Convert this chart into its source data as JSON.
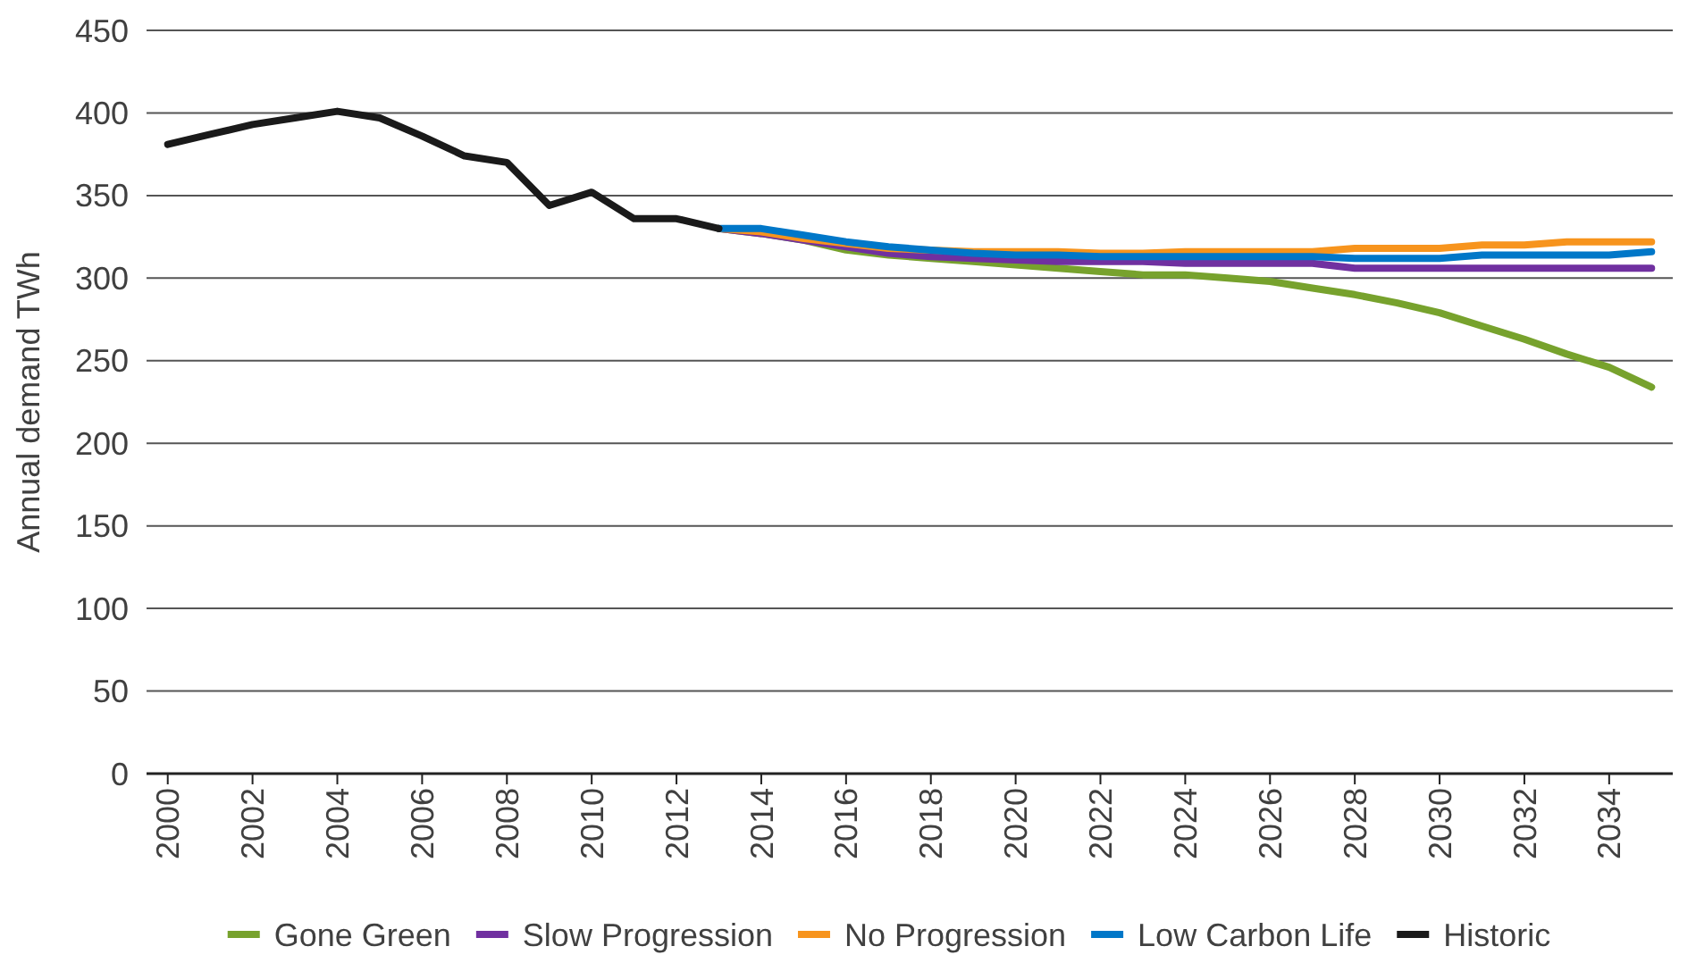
{
  "chart_data": {
    "type": "line",
    "ylabel": "Annual demand TWh",
    "xlim": [
      1999.5,
      2035.5
    ],
    "xticks": [
      2000,
      2002,
      2004,
      2006,
      2008,
      2010,
      2012,
      2014,
      2016,
      2018,
      2020,
      2022,
      2024,
      2026,
      2028,
      2030,
      2032,
      2034
    ],
    "ylim": [
      0,
      450
    ],
    "yticks": [
      0,
      50,
      100,
      150,
      200,
      250,
      300,
      350,
      400,
      450
    ],
    "grid": "y",
    "legend": "bottom",
    "line_style": "solid",
    "series": [
      {
        "name": "Gone Green",
        "color": "#77a22d",
        "x": [
          2013,
          2014,
          2015,
          2016,
          2017,
          2018,
          2019,
          2020,
          2021,
          2022,
          2023,
          2024,
          2025,
          2026,
          2027,
          2028,
          2029,
          2030,
          2031,
          2032,
          2033,
          2034,
          2035
        ],
        "values": [
          330,
          327,
          323,
          317,
          314,
          312,
          310,
          308,
          306,
          304,
          302,
          302,
          300,
          298,
          294,
          290,
          285,
          279,
          271,
          263,
          254,
          246,
          234
        ]
      },
      {
        "name": "Slow Progression",
        "color": "#7030a0",
        "x": [
          2013,
          2014,
          2015,
          2016,
          2017,
          2018,
          2019,
          2020,
          2021,
          2022,
          2023,
          2024,
          2025,
          2026,
          2027,
          2028,
          2029,
          2030,
          2031,
          2032,
          2033,
          2034,
          2035
        ],
        "values": [
          330,
          327,
          323,
          319,
          315,
          313,
          312,
          311,
          310,
          310,
          310,
          309,
          309,
          309,
          309,
          306,
          306,
          306,
          306,
          306,
          306,
          306,
          306
        ]
      },
      {
        "name": "No Progression",
        "color": "#f7941d",
        "x": [
          2013,
          2014,
          2015,
          2016,
          2017,
          2018,
          2019,
          2020,
          2021,
          2022,
          2023,
          2024,
          2025,
          2026,
          2027,
          2028,
          2029,
          2030,
          2031,
          2032,
          2033,
          2034,
          2035
        ],
        "values": [
          330,
          328,
          324,
          321,
          318,
          317,
          316,
          316,
          316,
          315,
          315,
          316,
          316,
          316,
          316,
          318,
          318,
          318,
          320,
          320,
          322,
          322,
          322
        ]
      },
      {
        "name": "Low Carbon Life",
        "color": "#0077c8",
        "x": [
          2013,
          2014,
          2015,
          2016,
          2017,
          2018,
          2019,
          2020,
          2021,
          2022,
          2023,
          2024,
          2025,
          2026,
          2027,
          2028,
          2029,
          2030,
          2031,
          2032,
          2033,
          2034,
          2035
        ],
        "values": [
          330,
          330,
          326,
          322,
          319,
          317,
          315,
          314,
          314,
          313,
          313,
          313,
          313,
          313,
          313,
          312,
          312,
          312,
          314,
          314,
          314,
          314,
          316
        ]
      },
      {
        "name": "Historic",
        "color": "#1a1a1a",
        "x": [
          2000,
          2001,
          2002,
          2003,
          2004,
          2005,
          2006,
          2007,
          2008,
          2009,
          2010,
          2011,
          2012,
          2013
        ],
        "values": [
          381,
          387,
          393,
          397,
          401,
          397,
          386,
          374,
          370,
          344,
          352,
          336,
          336,
          330
        ]
      }
    ]
  }
}
